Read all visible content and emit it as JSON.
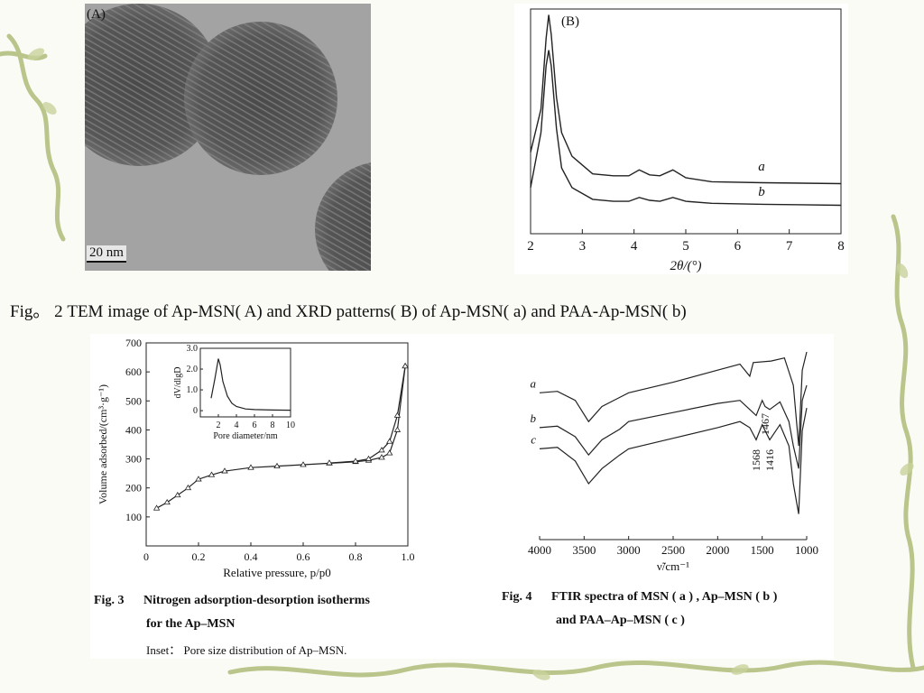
{
  "colors": {
    "background": "#fbfbf6",
    "vine": "#b9c58a",
    "vine_dark": "#8a9a5c",
    "line": "#222222"
  },
  "fig2": {
    "panel_a_label": "(A)",
    "scale_bar": "20 nm",
    "caption": "Fig。 2 TEM image of Ap-MSN( A) and XRD patterns( B) of Ap-MSN( a) and PAA-Ap-MSN( b)"
  },
  "chart_data": [
    {
      "type": "line",
      "panel_label": "(B)",
      "xlabel": "2θ/(°)",
      "xticks": [
        "2",
        "3",
        "4",
        "5",
        "6",
        "7",
        "8"
      ],
      "xlim": [
        2,
        8
      ],
      "series": [
        {
          "name": "a",
          "x": [
            2.0,
            2.2,
            2.3,
            2.35,
            2.4,
            2.5,
            2.6,
            2.8,
            3.2,
            3.6,
            3.9,
            4.1,
            4.3,
            4.5,
            4.75,
            5.0,
            5.5,
            6.5,
            8.0
          ],
          "y": [
            30,
            52,
            88,
            100,
            90,
            58,
            40,
            28,
            19,
            18,
            18,
            21,
            18.5,
            18,
            21,
            17,
            15,
            14.5,
            14
          ]
        },
        {
          "name": "b",
          "x": [
            2.0,
            2.2,
            2.3,
            2.35,
            2.4,
            2.5,
            2.6,
            2.8,
            3.2,
            3.6,
            3.9,
            4.1,
            4.3,
            4.5,
            4.75,
            5.0,
            5.5,
            6.5,
            8.0
          ],
          "y": [
            12,
            40,
            74,
            82,
            74,
            42,
            22,
            12,
            6,
            5,
            5,
            7,
            5.5,
            5,
            7,
            5,
            4,
            3.5,
            3
          ]
        }
      ]
    },
    {
      "type": "line",
      "xlabel": "Relative pressure, p/p0",
      "ylabel": "Volume adsorbed/(cm³·g⁻¹)",
      "xticks": [
        "0",
        "0.2",
        "0.4",
        "0.6",
        "0.8",
        "1.0"
      ],
      "yticks": [
        "100",
        "200",
        "300",
        "400",
        "500",
        "600",
        "700"
      ],
      "xlim": [
        0,
        1.0
      ],
      "ylim": [
        0,
        700
      ],
      "series": [
        {
          "name": "adsorption",
          "x": [
            0.04,
            0.08,
            0.12,
            0.16,
            0.2,
            0.25,
            0.3,
            0.4,
            0.5,
            0.6,
            0.7,
            0.8,
            0.85,
            0.9,
            0.93,
            0.96,
            0.99
          ],
          "y": [
            130,
            150,
            175,
            200,
            230,
            245,
            258,
            270,
            275,
            280,
            285,
            290,
            295,
            305,
            320,
            400,
            620
          ]
        },
        {
          "name": "desorption",
          "x": [
            0.99,
            0.96,
            0.93,
            0.9,
            0.85,
            0.8,
            0.7
          ],
          "y": [
            620,
            450,
            360,
            330,
            300,
            292,
            286
          ]
        }
      ],
      "inset": {
        "xlabel": "Pore diameter/nm",
        "ylabel": "dV/dlgD",
        "xticks": [
          "2",
          "4",
          "6",
          "8",
          "10"
        ],
        "yticks": [
          "0",
          "1.0",
          "2.0",
          "3.0"
        ],
        "xlim": [
          0,
          10
        ],
        "ylim": [
          -0.3,
          3.0
        ],
        "x": [
          1.2,
          1.6,
          2.0,
          2.2,
          2.5,
          3.0,
          3.5,
          4.0,
          5.0,
          6.0,
          8.0,
          10.0
        ],
        "y": [
          0.6,
          1.5,
          2.5,
          2.2,
          1.4,
          0.7,
          0.35,
          0.2,
          0.08,
          0.05,
          0.03,
          0.02
        ]
      }
    },
    {
      "type": "line",
      "xlabel": "ν̃/cm⁻¹",
      "xticks": [
        "4000",
        "3500",
        "3000",
        "2500",
        "2000",
        "1500",
        "1000"
      ],
      "xlim": [
        4000,
        1000
      ],
      "series": [
        {
          "name": "a",
          "x": [
            4000,
            3800,
            3600,
            3450,
            3300,
            3100,
            3000,
            2500,
            2000,
            1750,
            1640,
            1600,
            1400,
            1250,
            1150,
            1090,
            1050,
            1000
          ],
          "y": [
            55,
            56,
            50,
            36,
            46,
            52,
            55,
            62,
            70,
            74,
            66,
            75,
            76,
            78,
            60,
            20,
            70,
            82
          ]
        },
        {
          "name": "b",
          "x": [
            4000,
            3800,
            3600,
            3450,
            3300,
            3100,
            3000,
            2500,
            2000,
            1750,
            1640,
            1568,
            1500,
            1467,
            1416,
            1300,
            1200,
            1150,
            1090,
            1050,
            1000
          ],
          "y": [
            32,
            33,
            26,
            14,
            24,
            31,
            36,
            42,
            48,
            50,
            44,
            40,
            50,
            46,
            44,
            49,
            36,
            20,
            5,
            50,
            60
          ]
        },
        {
          "name": "c",
          "x": [
            4000,
            3800,
            3600,
            3450,
            3300,
            3100,
            3000,
            2500,
            2000,
            1750,
            1640,
            1568,
            1500,
            1467,
            1416,
            1300,
            1200,
            1150,
            1090,
            1050,
            1000
          ],
          "y": [
            18,
            19,
            10,
            -5,
            5,
            14,
            18,
            25,
            32,
            36,
            32,
            24,
            34,
            30,
            24,
            34,
            20,
            -5,
            -25,
            30,
            45
          ]
        }
      ],
      "annotations": [
        "1568",
        "1416",
        "1467"
      ]
    }
  ],
  "fig3": {
    "caption_num": "Fig. 3",
    "caption_title_1": "Nitrogen adsorption-desorption isotherms",
    "caption_title_2": "for the Ap–MSN",
    "caption_inset": "Inset： Pore size distribution of Ap–MSN."
  },
  "fig4": {
    "caption_num": "Fig. 4",
    "caption_line_1": "FTIR spectra of MSN ( a ) ,  Ap–MSN ( b )",
    "caption_line_2": "and PAA–Ap–MSN ( c )"
  }
}
